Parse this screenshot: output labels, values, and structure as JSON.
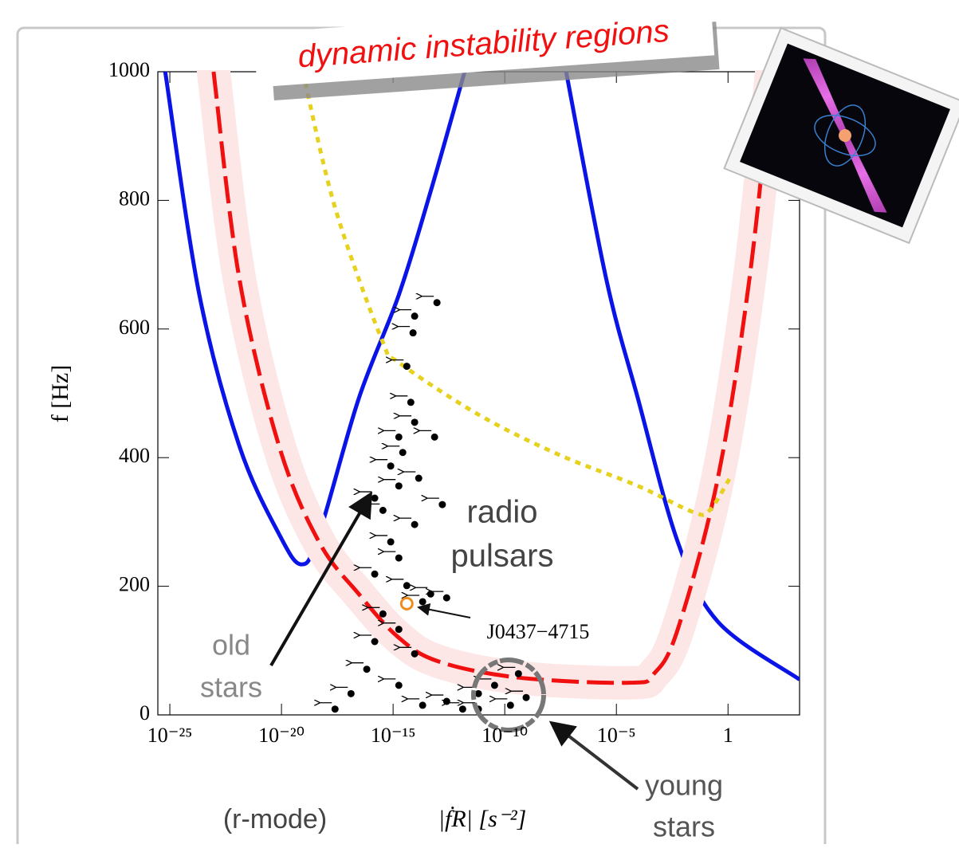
{
  "chart_data": {
    "type": "line",
    "title": "dynamic instability regions",
    "ylabel": "f [Hz]",
    "xlabel": "|ḟR| [s⁻²]",
    "annotations": [
      "(r-mode)",
      "radio",
      "pulsars",
      "old",
      "stars",
      "young",
      "stars"
    ],
    "xscale": "log",
    "xlim": [
      2.9e-26,
      1600
    ],
    "ylim": [
      0,
      1000
    ],
    "xticks": [
      {
        "value": 1e-25,
        "label": "10⁻²⁵"
      },
      {
        "value": 1e-20,
        "label": "10⁻²⁰"
      },
      {
        "value": 1e-15,
        "label": "10⁻¹⁵"
      },
      {
        "value": 1e-10,
        "label": "10⁻¹⁰"
      },
      {
        "value": 1e-05,
        "label": "10⁻⁵"
      },
      1
    ],
    "yticks": [
      0,
      200,
      400,
      600,
      800,
      1000
    ],
    "series": [
      {
        "style": "solid",
        "color": "#0a14e6",
        "x": [
          6.2e-26,
          2.1e-24,
          1.3e-22,
          7.8e-21,
          7.8e-20,
          4.8e-19,
          2.9e-17,
          1.8e-15,
          4.8e-14,
          1.6e-12,
          null,
          5.6e-08,
          3.5e-06,
          9.2e-05,
          0.0056,
          0.35,
          1600
        ],
        "values": [
          1000,
          653,
          418,
          281,
          234,
          281,
          492,
          653,
          814,
          1000,
          null,
          1000,
          678,
          492,
          269,
          145,
          55
        ]
      },
      {
        "style": "dashed",
        "color": "#f01010",
        "band_color": "#fde6e6",
        "x": [
          9.1e-24,
          1.3e-22,
          7.8e-21,
          4.8e-19,
          2.9e-17,
          1.8e-15,
          1.1e-13,
          4.1e-10,
          4.1e-05,
          0.00048,
          0.0056,
          0.35,
          9.1,
          91
        ],
        "values": [
          1000,
          678,
          418,
          269,
          188,
          120,
          83,
          58,
          50,
          64,
          133,
          368,
          678,
          1000
        ]
      },
      {
        "style": "dotted",
        "color": "#e6d21e",
        "x": [
          9.1e-20,
          2.5e-18,
          3.5e-16,
          1.8e-15,
          6.6e-12,
          2.5e-08,
          9.2e-05,
          0.029,
          0.15,
          1.2
        ],
        "values": [
          1000,
          789,
          579,
          548,
          467,
          405,
          356,
          315,
          318,
          368
        ]
      },
      {
        "style": "points",
        "color": "#000000",
        "x": [
          9.2e-14,
          9.2e-15,
          7.8e-15,
          4.1e-15,
          6.2e-15,
          9.2e-15,
          7.2e-14,
          1.8e-15,
          2.7e-15,
          7.8e-16,
          1.4e-14,
          1.6e-13,
          1.8e-15,
          1.5e-16,
          3.5e-16,
          9.2e-15,
          7.8e-16,
          1.8e-15,
          1.5e-16,
          4.1e-15,
          2.1e-14,
          4.8e-14,
          2.5e-13,
          3.5e-16,
          1.8e-15,
          1.5e-16,
          9.2e-15,
          6.6e-17,
          1.8e-15,
          1.3e-17,
          2.5e-18,
          2.5e-13,
          6.6e-12,
          3.5e-11,
          4.1e-10,
          9.1e-10,
          1.8e-10,
          1.3e-12,
          2.1e-14,
          6.6e-12
        ],
        "values": [
          641,
          620,
          594,
          542,
          486,
          455,
          432,
          432,
          408,
          387,
          368,
          327,
          356,
          337,
          318,
          296,
          269,
          244,
          219,
          201,
          176,
          188,
          182,
          157,
          133,
          114,
          95,
          71,
          46,
          33,
          9,
          21,
          33,
          46,
          64,
          27,
          15,
          9,
          15,
          9
        ]
      },
      {
        "style": "highlight",
        "name": "J0437−4715",
        "color": "#f08c1e",
        "x": [
          4.1e-15
        ],
        "values": [
          173
        ]
      }
    ]
  }
}
